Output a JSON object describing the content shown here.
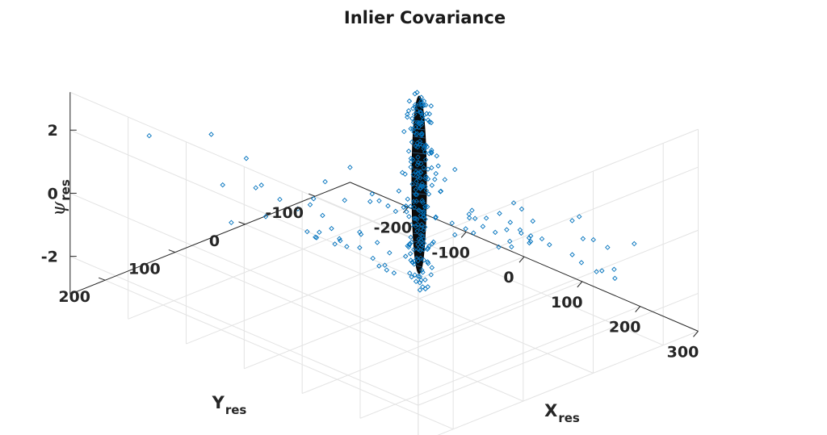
{
  "chart_data": {
    "type": "scatter3d",
    "title": "Inlier Covariance",
    "xlabel": {
      "main": "X",
      "sub": "res"
    },
    "ylabel": {
      "main": "Y",
      "sub": "res"
    },
    "zlabel": {
      "main": "ψ",
      "sub": "res"
    },
    "xticks": [
      -200,
      -100,
      0,
      100,
      200,
      300
    ],
    "yticks": [
      -100,
      0,
      100,
      200
    ],
    "zticks": [
      -2,
      0,
      2
    ],
    "xlim": [
      -300,
      300
    ],
    "ylim": [
      -150,
      250
    ],
    "zlim": [
      -3.2,
      3.2
    ],
    "grid": true,
    "marker": "diamond",
    "marker_color": "#0072bd",
    "ellipsoid_color": "#0b0b0b",
    "outlier_points": [
      [
        -183,
        234,
        2.6
      ],
      [
        -146,
        176,
        2.42
      ],
      [
        -183,
        129,
        0.11
      ],
      [
        -173,
        125,
        -1.04
      ],
      [
        -139,
        104,
        -0.77
      ],
      [
        -103,
        140,
        0.83
      ],
      [
        -91,
        158,
        1.0
      ],
      [
        -76,
        184,
        2.28
      ],
      [
        -58,
        151,
        0.83
      ],
      [
        -64,
        107,
        -0.63
      ],
      [
        -43,
        111,
        -0.62
      ],
      [
        -45,
        136,
        0.5
      ],
      [
        -31,
        117,
        -0.3
      ],
      [
        -19,
        140,
        0.87
      ],
      [
        -6,
        133,
        0.57
      ],
      [
        -13,
        102,
        -0.56
      ],
      [
        1,
        126,
        0.15
      ],
      [
        -1,
        150,
        1.29
      ],
      [
        8,
        110,
        -0.51
      ],
      [
        23,
        104,
        -0.48
      ],
      [
        18,
        81,
        -1.06
      ],
      [
        12,
        59,
        -1.52
      ],
      [
        40,
        93,
        -0.28
      ],
      [
        31,
        68,
        -0.9
      ],
      [
        2,
        48,
        -1.85
      ],
      [
        16,
        112,
        2.08
      ],
      [
        31,
        160,
        2.17
      ],
      [
        11,
        45,
        -1.9
      ],
      [
        -16,
        44,
        -1.9
      ],
      [
        49,
        60,
        -0.94
      ],
      [
        72,
        51,
        0.34
      ],
      [
        95,
        7,
        0.17
      ],
      [
        92,
        80,
        1.32
      ],
      [
        134,
        60,
        2.48
      ],
      [
        147,
        7,
        0.72
      ],
      [
        82,
        17,
        -0.38
      ],
      [
        114,
        28,
        0.16
      ],
      [
        139,
        -15,
        0.18
      ],
      [
        167,
        -24,
        0.36
      ],
      [
        189,
        -62,
        0.21
      ],
      [
        175,
        10,
        1.3
      ],
      [
        178,
        1,
        1.05
      ],
      [
        205,
        -79,
        -0.42
      ],
      [
        247,
        -24,
        1.13
      ],
      [
        233,
        -41,
        0.17
      ],
      [
        244,
        -67,
        -0.25
      ],
      [
        273,
        -81,
        -0.03
      ],
      [
        213,
        -102,
        -1.5
      ],
      [
        183,
        -128,
        -2.25
      ],
      [
        144,
        -134,
        -2.4
      ],
      [
        163,
        -126,
        -2.15
      ],
      [
        132,
        -66,
        -0.85
      ],
      [
        118,
        -48,
        -0.62
      ],
      [
        87,
        -53,
        -0.8
      ],
      [
        92,
        -83,
        -1.4
      ],
      [
        59,
        -47,
        -0.6
      ],
      [
        44,
        -39,
        -0.4
      ],
      [
        10,
        -63,
        -1.0
      ],
      [
        25,
        -88,
        -1.68
      ],
      [
        38,
        -98,
        -1.95
      ],
      [
        1,
        -79,
        -1.35
      ],
      [
        -12,
        -101,
        -1.9
      ],
      [
        -20,
        -47,
        -0.38
      ],
      [
        -6,
        -36,
        -0.16
      ],
      [
        5,
        -5,
        0.6
      ],
      [
        14,
        10,
        1.01
      ],
      [
        31,
        -11,
        0.72
      ],
      [
        69,
        -87,
        -1.25
      ],
      [
        75,
        -124,
        -2.0
      ],
      [
        106,
        -144,
        -2.5
      ],
      [
        95,
        -140,
        -2.3
      ],
      [
        56,
        -113,
        -1.77
      ],
      [
        38,
        -126,
        -2.25
      ],
      [
        70,
        -99,
        -1.6
      ],
      [
        -70,
        27,
        -1.4
      ],
      [
        -103,
        63,
        -1.5
      ],
      [
        -129,
        7,
        -2.25
      ],
      [
        -138,
        6,
        -2.5
      ],
      [
        -1,
        -2,
        1.68
      ],
      [
        32,
        9,
        1.78
      ],
      [
        21,
        8,
        1.9
      ],
      [
        -34,
        39,
        0.2
      ],
      [
        -32,
        18,
        -0.35
      ],
      [
        -52,
        27,
        -0.29
      ],
      [
        -49,
        -7,
        -0.88
      ],
      [
        -69,
        0,
        -0.64
      ],
      [
        -85,
        36,
        -0.43
      ],
      [
        -26,
        -42,
        -1.98
      ],
      [
        -50,
        -41,
        -2.07
      ],
      [
        -99,
        1,
        -1.93
      ],
      [
        -20,
        -23,
        -1.39
      ],
      [
        29,
        -23,
        -0.78
      ],
      [
        43,
        -42,
        -1.15
      ],
      [
        60,
        -64,
        -1.66
      ],
      [
        82,
        -64,
        -1.48
      ],
      [
        10,
        -15,
        -0.69
      ]
    ]
  }
}
